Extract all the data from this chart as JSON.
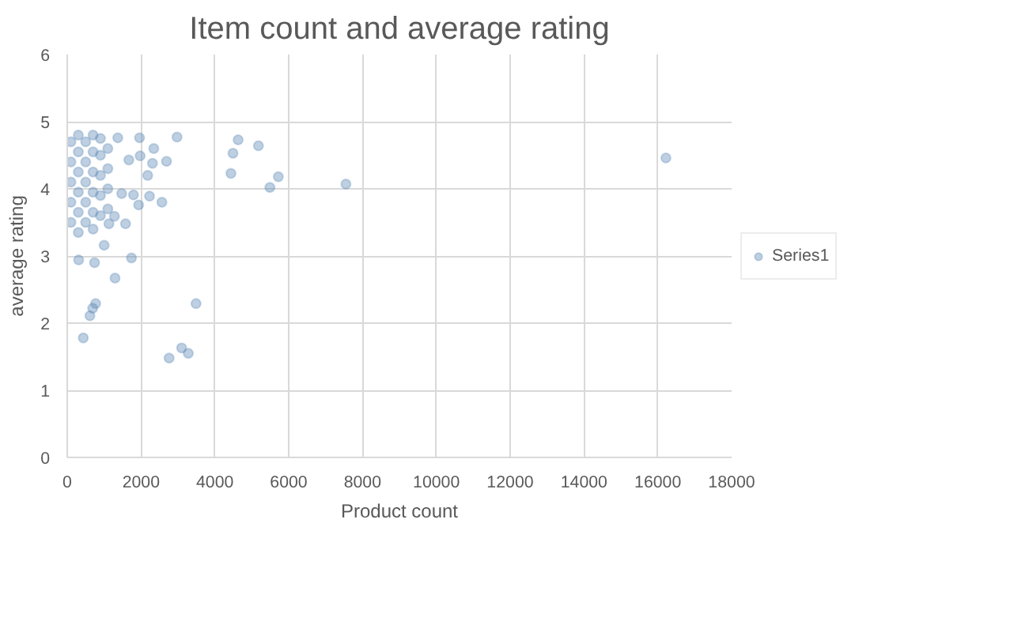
{
  "chart_data": {
    "type": "scatter",
    "title": "Item count and average rating",
    "xlabel": "Product count",
    "ylabel": "average rating",
    "xlim": [
      0,
      18000
    ],
    "xticks": [
      0,
      2000,
      4000,
      6000,
      8000,
      10000,
      12000,
      14000,
      16000,
      18000
    ],
    "ylim": [
      0,
      6
    ],
    "yticks": [
      0,
      1,
      2,
      3,
      4,
      5,
      6
    ],
    "grid": true,
    "legend": "right",
    "marker": "circle",
    "series": [
      {
        "name": "Series1",
        "color": "#5b87b5",
        "x": [
          2975,
          4630,
          4490,
          5180,
          4435,
          5720,
          5490,
          7550,
          16220,
          3490,
          2760,
          3100,
          3280,
          435,
          770,
          615,
          690,
          1295,
          1740,
          310,
          740,
          1000,
          2565,
          2230,
          1935,
          2690,
          2310,
          2345,
          2180,
          1960,
          1370,
          1975,
          1580,
          1280,
          1130,
          1670,
          1795,
          1475,
          100,
          100,
          100,
          100,
          100,
          300,
          300,
          300,
          300,
          300,
          300,
          500,
          500,
          500,
          500,
          500,
          700,
          700,
          700,
          700,
          700,
          700,
          900,
          900,
          900,
          900,
          900,
          1100,
          1100,
          1100,
          1100
        ],
        "values": [
          4.77,
          4.73,
          4.53,
          4.64,
          4.23,
          4.18,
          4.02,
          4.07,
          4.46,
          2.29,
          1.48,
          1.63,
          1.55,
          1.78,
          2.29,
          2.11,
          2.22,
          2.67,
          2.97,
          2.94,
          2.9,
          3.16,
          3.8,
          3.89,
          3.76,
          4.41,
          4.38,
          4.6,
          4.2,
          4.76,
          4.76,
          4.49,
          3.48,
          3.59,
          3.48,
          4.43,
          3.91,
          3.93,
          3.5,
          3.8,
          4.1,
          4.4,
          4.7,
          3.35,
          3.65,
          3.95,
          4.25,
          4.55,
          4.8,
          3.5,
          3.8,
          4.1,
          4.4,
          4.7,
          3.4,
          3.65,
          3.95,
          4.25,
          4.55,
          4.8,
          3.6,
          3.9,
          4.2,
          4.5,
          4.75,
          3.7,
          4.0,
          4.3,
          4.6
        ]
      }
    ]
  }
}
